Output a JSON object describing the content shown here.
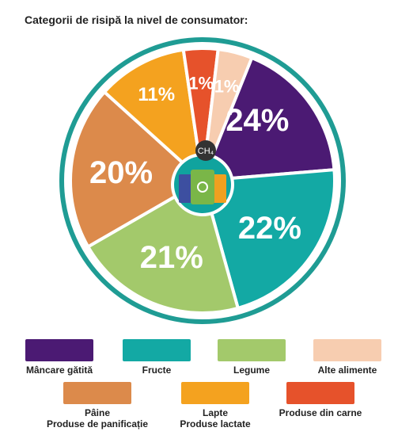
{
  "title": "Categorii de risipă la nivel de consumator:",
  "icon_label": "CH₄",
  "chart_data": {
    "type": "pie",
    "title": "Categorii de risipă la nivel de consumator:",
    "slices": [
      {
        "label": "Mâncare gătită",
        "value": 24,
        "display": "24%",
        "color": "#4b1a73"
      },
      {
        "label": "Fructe",
        "value": 22,
        "display": "22%",
        "color": "#13a9a4"
      },
      {
        "label": "Legume",
        "value": 21,
        "display": "21%",
        "color": "#a3c96b"
      },
      {
        "label": "Pâine / Produse de panificație",
        "value": 20,
        "display": "20%",
        "color": "#dc8a4b"
      },
      {
        "label": "Lapte / Produse lactate",
        "value": 11,
        "display": "11%",
        "color": "#f4a21f"
      },
      {
        "label": "Produse din carne",
        "value": 1,
        "display": "1%",
        "color": "#e6522b"
      },
      {
        "label": "Alte alimente",
        "value": 1,
        "display": "1%",
        "color": "#f7cdb0"
      }
    ],
    "legend_position": "bottom"
  },
  "legend": {
    "row1": [
      {
        "label": "Mâncare gătită",
        "color": "#4b1a73"
      },
      {
        "label": "Fructe",
        "color": "#13a9a4"
      },
      {
        "label": "Legume",
        "color": "#a3c96b"
      },
      {
        "label": "Alte alimente",
        "color": "#f7cdb0"
      }
    ],
    "row2": [
      {
        "line1": "Pâine",
        "line2": "Produse de panificație",
        "color": "#dc8a4b"
      },
      {
        "line1": "Lapte",
        "line2": "Produse lactate",
        "color": "#f4a21f"
      },
      {
        "line1": "Produse din carne",
        "line2": "",
        "color": "#e6522b"
      }
    ]
  }
}
